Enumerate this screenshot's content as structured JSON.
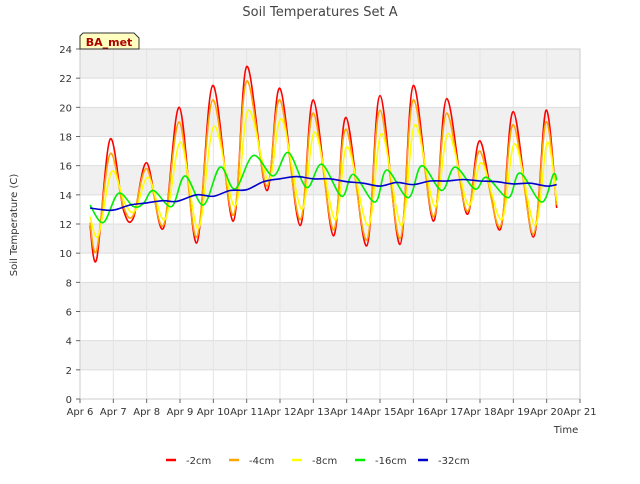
{
  "chart_data": {
    "type": "line",
    "title": "Soil Temperatures Set A",
    "xlabel": "Time",
    "ylabel": "Soil Temperature (C)",
    "site_label": "BA_met",
    "xlim": [
      6,
      21
    ],
    "ylim": [
      0,
      24
    ],
    "x_ticks": [
      {
        "v": 6,
        "label": "Apr 6"
      },
      {
        "v": 7,
        "label": "Apr 7"
      },
      {
        "v": 8,
        "label": "Apr 8"
      },
      {
        "v": 9,
        "label": "Apr 9"
      },
      {
        "v": 10,
        "label": "Apr 10"
      },
      {
        "v": 11,
        "label": "Apr 11"
      },
      {
        "v": 12,
        "label": "Apr 12"
      },
      {
        "v": 13,
        "label": "Apr 13"
      },
      {
        "v": 14,
        "label": "Apr 14"
      },
      {
        "v": 15,
        "label": "Apr 15"
      },
      {
        "v": 16,
        "label": "Apr 16"
      },
      {
        "v": 17,
        "label": "Apr 17"
      },
      {
        "v": 18,
        "label": "Apr 18"
      },
      {
        "v": 19,
        "label": "Apr 19"
      },
      {
        "v": 20,
        "label": "Apr 20"
      },
      {
        "v": 21,
        "label": "Apr 21"
      }
    ],
    "y_ticks": [
      0,
      2,
      4,
      6,
      8,
      10,
      12,
      14,
      16,
      18,
      20,
      22,
      24
    ],
    "grid": true,
    "legend_position": "bottom",
    "series": [
      {
        "name": "-2cm",
        "color": "#ff0000",
        "points": [
          [
            6.3,
            11.9
          ],
          [
            6.5,
            9.6
          ],
          [
            6.9,
            17.8
          ],
          [
            7.3,
            13.0
          ],
          [
            7.6,
            12.4
          ],
          [
            8.0,
            16.2
          ],
          [
            8.5,
            11.7
          ],
          [
            8.98,
            20.0
          ],
          [
            9.5,
            10.7
          ],
          [
            9.98,
            21.5
          ],
          [
            10.6,
            12.2
          ],
          [
            11.0,
            22.8
          ],
          [
            11.6,
            14.3
          ],
          [
            12.0,
            21.3
          ],
          [
            12.6,
            11.9
          ],
          [
            13.0,
            20.5
          ],
          [
            13.6,
            11.2
          ],
          [
            13.98,
            19.3
          ],
          [
            14.6,
            10.5
          ],
          [
            15.0,
            20.8
          ],
          [
            15.6,
            10.6
          ],
          [
            16.0,
            21.5
          ],
          [
            16.6,
            12.2
          ],
          [
            17.0,
            20.6
          ],
          [
            17.6,
            12.7
          ],
          [
            18.0,
            17.7
          ],
          [
            18.6,
            11.6
          ],
          [
            19.0,
            19.7
          ],
          [
            19.6,
            11.1
          ],
          [
            19.98,
            19.8
          ],
          [
            20.3,
            13.1
          ]
        ]
      },
      {
        "name": "-4cm",
        "color": "#ffa500",
        "points": [
          [
            6.3,
            12.1
          ],
          [
            6.5,
            10.2
          ],
          [
            6.9,
            16.8
          ],
          [
            7.3,
            13.2
          ],
          [
            7.6,
            12.6
          ],
          [
            8.0,
            15.8
          ],
          [
            8.5,
            11.9
          ],
          [
            8.98,
            19.0
          ],
          [
            9.5,
            11.1
          ],
          [
            9.98,
            20.5
          ],
          [
            10.6,
            12.6
          ],
          [
            11.0,
            21.8
          ],
          [
            11.6,
            14.6
          ],
          [
            12.0,
            20.5
          ],
          [
            12.6,
            12.3
          ],
          [
            13.0,
            19.6
          ],
          [
            13.6,
            11.6
          ],
          [
            13.98,
            18.5
          ],
          [
            14.6,
            10.9
          ],
          [
            15.0,
            19.8
          ],
          [
            15.6,
            11.0
          ],
          [
            16.0,
            20.5
          ],
          [
            16.6,
            12.5
          ],
          [
            17.0,
            19.6
          ],
          [
            17.6,
            12.9
          ],
          [
            18.0,
            17.0
          ],
          [
            18.6,
            11.8
          ],
          [
            19.0,
            18.8
          ],
          [
            19.6,
            11.3
          ],
          [
            19.98,
            19.0
          ],
          [
            20.3,
            13.3
          ]
        ]
      },
      {
        "name": "-8cm",
        "color": "#ffff00",
        "points": [
          [
            6.3,
            12.5
          ],
          [
            6.55,
            11.2
          ],
          [
            6.95,
            15.6
          ],
          [
            7.35,
            13.4
          ],
          [
            7.65,
            12.9
          ],
          [
            8.05,
            15.2
          ],
          [
            8.55,
            12.3
          ],
          [
            9.02,
            17.6
          ],
          [
            9.55,
            11.7
          ],
          [
            10.02,
            18.7
          ],
          [
            10.65,
            13.2
          ],
          [
            11.05,
            19.8
          ],
          [
            11.65,
            15.0
          ],
          [
            12.05,
            19.2
          ],
          [
            12.65,
            13.0
          ],
          [
            13.05,
            18.3
          ],
          [
            13.65,
            12.3
          ],
          [
            14.02,
            17.3
          ],
          [
            14.65,
            11.9
          ],
          [
            15.05,
            18.2
          ],
          [
            15.65,
            11.9
          ],
          [
            16.05,
            18.8
          ],
          [
            16.65,
            13.2
          ],
          [
            17.05,
            18.2
          ],
          [
            17.65,
            13.3
          ],
          [
            18.05,
            16.2
          ],
          [
            18.65,
            12.3
          ],
          [
            19.05,
            17.5
          ],
          [
            19.65,
            11.9
          ],
          [
            20.02,
            17.6
          ],
          [
            20.3,
            13.6
          ]
        ]
      },
      {
        "name": "-16cm",
        "color": "#00ee00",
        "points": [
          [
            6.3,
            13.3
          ],
          [
            6.7,
            12.1
          ],
          [
            7.15,
            14.1
          ],
          [
            7.6,
            13.2
          ],
          [
            7.9,
            13.4
          ],
          [
            8.2,
            14.3
          ],
          [
            8.75,
            13.2
          ],
          [
            9.15,
            15.3
          ],
          [
            9.7,
            13.3
          ],
          [
            10.2,
            15.9
          ],
          [
            10.65,
            14.4
          ],
          [
            11.2,
            16.7
          ],
          [
            11.8,
            15.3
          ],
          [
            12.25,
            16.9
          ],
          [
            12.8,
            14.5
          ],
          [
            13.25,
            16.1
          ],
          [
            13.85,
            13.9
          ],
          [
            14.2,
            15.4
          ],
          [
            14.85,
            13.5
          ],
          [
            15.2,
            15.7
          ],
          [
            15.85,
            13.8
          ],
          [
            16.25,
            16.0
          ],
          [
            16.85,
            14.3
          ],
          [
            17.25,
            15.9
          ],
          [
            17.85,
            14.4
          ],
          [
            18.2,
            15.2
          ],
          [
            18.85,
            13.8
          ],
          [
            19.2,
            15.5
          ],
          [
            19.85,
            13.5
          ],
          [
            20.2,
            15.4
          ],
          [
            20.3,
            15.0
          ]
        ]
      },
      {
        "name": "-32cm",
        "color": "#0000cc",
        "points": [
          [
            6.3,
            13.1
          ],
          [
            6.6,
            13.0
          ],
          [
            7.0,
            12.95
          ],
          [
            7.5,
            13.3
          ],
          [
            8.0,
            13.45
          ],
          [
            8.5,
            13.6
          ],
          [
            8.9,
            13.55
          ],
          [
            9.5,
            14.0
          ],
          [
            10.0,
            13.9
          ],
          [
            10.5,
            14.3
          ],
          [
            11.0,
            14.35
          ],
          [
            11.5,
            14.9
          ],
          [
            12.0,
            15.1
          ],
          [
            12.5,
            15.25
          ],
          [
            13.0,
            15.1
          ],
          [
            13.5,
            15.1
          ],
          [
            14.0,
            14.9
          ],
          [
            14.5,
            14.8
          ],
          [
            15.0,
            14.6
          ],
          [
            15.5,
            14.85
          ],
          [
            16.0,
            14.7
          ],
          [
            16.5,
            14.95
          ],
          [
            17.0,
            14.95
          ],
          [
            17.5,
            15.05
          ],
          [
            18.0,
            14.95
          ],
          [
            18.5,
            14.9
          ],
          [
            19.0,
            14.75
          ],
          [
            19.5,
            14.8
          ],
          [
            20.0,
            14.6
          ],
          [
            20.3,
            14.7
          ]
        ]
      }
    ]
  }
}
